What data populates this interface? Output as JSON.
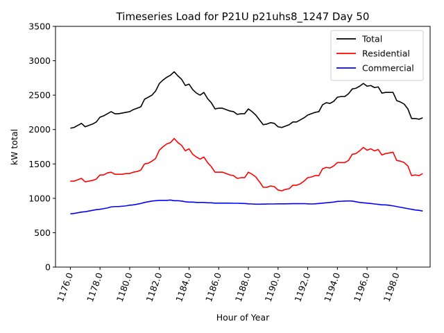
{
  "chart_data": {
    "type": "line",
    "title": "Timeseries Load for P21U p21uhs8_1247  Day 50",
    "xlabel": "Hour of Year",
    "ylabel": "kW total",
    "xlim": [
      1175.0,
      1200.25
    ],
    "ylim": [
      0,
      3500
    ],
    "xticks": [
      1176.0,
      1178.0,
      1180.0,
      1182.0,
      1184.0,
      1186.0,
      1188.0,
      1190.0,
      1192.0,
      1194.0,
      1196.0,
      1198.0
    ],
    "xtick_labels": [
      "1176.0",
      "1178.0",
      "1180.0",
      "1182.0",
      "1184.0",
      "1186.0",
      "1188.0",
      "1190.0",
      "1192.0",
      "1194.0",
      "1196.0",
      "1198.0"
    ],
    "yticks": [
      0,
      500,
      1000,
      1500,
      2000,
      2500,
      3000,
      3500
    ],
    "ytick_labels": [
      "0",
      "500",
      "1000",
      "1500",
      "2000",
      "2500",
      "3000",
      "3500"
    ],
    "legend_position": "top-right",
    "x": [
      1176.0,
      1176.25,
      1176.5,
      1176.75,
      1177.0,
      1177.25,
      1177.5,
      1177.75,
      1178.0,
      1178.25,
      1178.5,
      1178.75,
      1179.0,
      1179.25,
      1179.5,
      1179.75,
      1180.0,
      1180.25,
      1180.5,
      1180.75,
      1181.0,
      1181.25,
      1181.5,
      1181.75,
      1182.0,
      1182.25,
      1182.5,
      1182.75,
      1183.0,
      1183.25,
      1183.5,
      1183.75,
      1184.0,
      1184.25,
      1184.5,
      1184.75,
      1185.0,
      1185.25,
      1185.5,
      1185.75,
      1186.0,
      1186.25,
      1186.5,
      1186.75,
      1187.0,
      1187.25,
      1187.5,
      1187.75,
      1188.0,
      1188.25,
      1188.5,
      1188.75,
      1189.0,
      1189.25,
      1189.5,
      1189.75,
      1190.0,
      1190.25,
      1190.5,
      1190.75,
      1191.0,
      1191.25,
      1191.5,
      1191.75,
      1192.0,
      1192.25,
      1192.5,
      1192.75,
      1193.0,
      1193.25,
      1193.5,
      1193.75,
      1194.0,
      1194.25,
      1194.5,
      1194.75,
      1195.0,
      1195.25,
      1195.5,
      1195.75,
      1196.0,
      1196.25,
      1196.5,
      1196.75,
      1197.0,
      1197.25,
      1197.5,
      1197.75,
      1198.0,
      1198.25,
      1198.5,
      1198.75,
      1199.0,
      1199.25,
      1199.5,
      1199.75
    ],
    "series": [
      {
        "name": "Total",
        "color": "#000000",
        "values": [
          2020,
          2030,
          2060,
          2090,
          2040,
          2060,
          2080,
          2110,
          2180,
          2200,
          2230,
          2260,
          2230,
          2230,
          2240,
          2250,
          2260,
          2290,
          2310,
          2330,
          2440,
          2470,
          2500,
          2560,
          2670,
          2720,
          2760,
          2790,
          2840,
          2780,
          2730,
          2640,
          2660,
          2580,
          2530,
          2500,
          2540,
          2450,
          2390,
          2300,
          2310,
          2310,
          2290,
          2270,
          2260,
          2220,
          2230,
          2230,
          2300,
          2260,
          2210,
          2140,
          2070,
          2080,
          2100,
          2090,
          2040,
          2030,
          2050,
          2070,
          2110,
          2110,
          2140,
          2170,
          2210,
          2230,
          2250,
          2260,
          2360,
          2390,
          2380,
          2410,
          2470,
          2480,
          2480,
          2520,
          2590,
          2600,
          2630,
          2670,
          2630,
          2640,
          2610,
          2620,
          2530,
          2540,
          2540,
          2540,
          2420,
          2400,
          2370,
          2300,
          2160,
          2160,
          2150,
          2170
        ]
      },
      {
        "name": "Residential",
        "color": "#ff0000",
        "values": [
          1250,
          1250,
          1270,
          1290,
          1240,
          1250,
          1260,
          1280,
          1340,
          1340,
          1370,
          1380,
          1350,
          1350,
          1350,
          1360,
          1360,
          1380,
          1390,
          1410,
          1500,
          1510,
          1540,
          1580,
          1700,
          1750,
          1790,
          1810,
          1870,
          1810,
          1770,
          1690,
          1720,
          1640,
          1600,
          1570,
          1600,
          1520,
          1460,
          1380,
          1380,
          1380,
          1360,
          1340,
          1330,
          1290,
          1300,
          1300,
          1380,
          1350,
          1310,
          1240,
          1160,
          1160,
          1180,
          1170,
          1120,
          1110,
          1130,
          1140,
          1190,
          1190,
          1210,
          1250,
          1300,
          1310,
          1330,
          1330,
          1430,
          1450,
          1440,
          1470,
          1520,
          1520,
          1520,
          1550,
          1640,
          1650,
          1690,
          1740,
          1700,
          1720,
          1690,
          1710,
          1630,
          1650,
          1660,
          1670,
          1550,
          1540,
          1520,
          1470,
          1330,
          1340,
          1330,
          1360
        ]
      },
      {
        "name": "Commercial",
        "color": "#0000ff",
        "values": [
          775,
          780,
          790,
          800,
          805,
          815,
          825,
          835,
          840,
          850,
          860,
          875,
          880,
          880,
          885,
          890,
          900,
          905,
          915,
          925,
          940,
          950,
          960,
          965,
          970,
          970,
          970,
          975,
          965,
          965,
          960,
          950,
          945,
          945,
          940,
          940,
          940,
          935,
          935,
          930,
          930,
          930,
          930,
          930,
          928,
          928,
          926,
          925,
          920,
          918,
          915,
          915,
          916,
          917,
          918,
          918,
          920,
          920,
          920,
          921,
          922,
          922,
          922,
          923,
          920,
          918,
          920,
          925,
          930,
          935,
          940,
          945,
          955,
          957,
          960,
          962,
          960,
          950,
          940,
          935,
          930,
          925,
          918,
          912,
          905,
          905,
          898,
          890,
          880,
          870,
          860,
          850,
          840,
          830,
          825,
          815
        ]
      }
    ]
  }
}
